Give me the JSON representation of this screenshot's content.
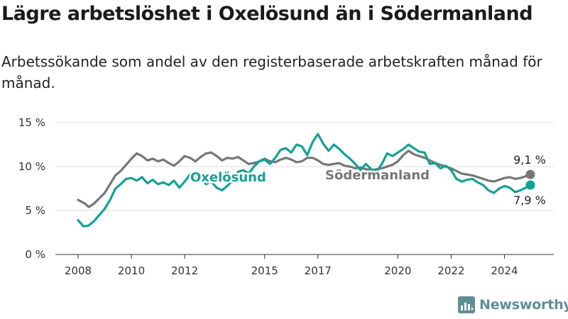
{
  "header": {
    "title": "Lägre arbetslöshet i Oxelösund än i Södermanland",
    "subtitle": "Arbetssökande som andel av den registerbaserade arbetskraften månad för månad."
  },
  "brand": {
    "name": "Newsworthy",
    "icon": "bar-chart-logo-icon",
    "color": "#5f8e94"
  },
  "chart_data": {
    "type": "line",
    "title": "Lägre arbetslöshet i Oxelösund än i Södermanland",
    "subtitle": "Arbetssökande som andel av den registerbaserade arbetskraften månad för månad.",
    "x_unit": "year",
    "xlim": [
      2008,
      2025.25
    ],
    "ylim": [
      0,
      15
    ],
    "y_ticks": [
      {
        "value": 0,
        "label": "0 %"
      },
      {
        "value": 5,
        "label": "5 %"
      },
      {
        "value": 10,
        "label": "10 %"
      },
      {
        "value": 15,
        "label": "15 %"
      }
    ],
    "x_ticks": [
      {
        "value": 2008,
        "label": "2008"
      },
      {
        "value": 2010,
        "label": "2010"
      },
      {
        "value": 2012,
        "label": "2012"
      },
      {
        "value": 2015,
        "label": "2015"
      },
      {
        "value": 2017,
        "label": "2017"
      },
      {
        "value": 2020,
        "label": "2020"
      },
      {
        "value": 2022,
        "label": "2022"
      },
      {
        "value": 2024,
        "label": "2024"
      }
    ],
    "grid": {
      "horizontal": true,
      "vertical": false
    },
    "legend": "inline labels",
    "series": [
      {
        "name": "Södermanland",
        "color": "#767676",
        "end_label": "9,1 %",
        "points": [
          [
            2008.0,
            6.2
          ],
          [
            2008.25,
            5.8
          ],
          [
            2008.4,
            5.4
          ],
          [
            2008.6,
            5.8
          ],
          [
            2008.8,
            6.4
          ],
          [
            2009.0,
            7.0
          ],
          [
            2009.2,
            8.0
          ],
          [
            2009.4,
            9.0
          ],
          [
            2009.6,
            9.5
          ],
          [
            2009.8,
            10.2
          ],
          [
            2010.0,
            10.9
          ],
          [
            2010.2,
            11.5
          ],
          [
            2010.4,
            11.2
          ],
          [
            2010.6,
            10.7
          ],
          [
            2010.8,
            10.9
          ],
          [
            2011.0,
            10.6
          ],
          [
            2011.2,
            10.8
          ],
          [
            2011.4,
            10.4
          ],
          [
            2011.6,
            10.1
          ],
          [
            2011.8,
            10.6
          ],
          [
            2012.0,
            11.2
          ],
          [
            2012.2,
            11.0
          ],
          [
            2012.4,
            10.6
          ],
          [
            2012.6,
            11.1
          ],
          [
            2012.8,
            11.5
          ],
          [
            2013.0,
            11.6
          ],
          [
            2013.2,
            11.2
          ],
          [
            2013.4,
            10.7
          ],
          [
            2013.6,
            11.0
          ],
          [
            2013.8,
            10.9
          ],
          [
            2014.0,
            11.1
          ],
          [
            2014.2,
            10.7
          ],
          [
            2014.4,
            10.3
          ],
          [
            2014.6,
            10.4
          ],
          [
            2014.8,
            10.6
          ],
          [
            2015.0,
            10.9
          ],
          [
            2015.2,
            10.6
          ],
          [
            2015.4,
            10.5
          ],
          [
            2015.6,
            10.8
          ],
          [
            2015.8,
            11.0
          ],
          [
            2016.0,
            10.8
          ],
          [
            2016.2,
            10.5
          ],
          [
            2016.4,
            10.6
          ],
          [
            2016.6,
            11.0
          ],
          [
            2016.8,
            11.0
          ],
          [
            2017.0,
            10.7
          ],
          [
            2017.2,
            10.3
          ],
          [
            2017.4,
            10.2
          ],
          [
            2017.6,
            10.3
          ],
          [
            2017.8,
            10.4
          ],
          [
            2018.0,
            10.1
          ],
          [
            2018.2,
            10.0
          ],
          [
            2018.4,
            9.8
          ],
          [
            2018.6,
            9.9
          ],
          [
            2018.8,
            9.7
          ],
          [
            2019.0,
            9.6
          ],
          [
            2019.2,
            9.7
          ],
          [
            2019.4,
            9.8
          ],
          [
            2019.6,
            10.0
          ],
          [
            2019.8,
            10.2
          ],
          [
            2020.0,
            10.6
          ],
          [
            2020.2,
            11.3
          ],
          [
            2020.4,
            11.8
          ],
          [
            2020.6,
            11.4
          ],
          [
            2020.8,
            11.2
          ],
          [
            2021.0,
            11.0
          ],
          [
            2021.2,
            10.7
          ],
          [
            2021.4,
            10.4
          ],
          [
            2021.6,
            10.2
          ],
          [
            2021.8,
            10.0
          ],
          [
            2022.0,
            9.8
          ],
          [
            2022.2,
            9.5
          ],
          [
            2022.4,
            9.2
          ],
          [
            2022.6,
            9.1
          ],
          [
            2022.8,
            9.0
          ],
          [
            2023.0,
            8.8
          ],
          [
            2023.2,
            8.6
          ],
          [
            2023.4,
            8.4
          ],
          [
            2023.6,
            8.3
          ],
          [
            2023.8,
            8.5
          ],
          [
            2024.0,
            8.7
          ],
          [
            2024.2,
            8.8
          ],
          [
            2024.4,
            8.6
          ],
          [
            2024.6,
            8.7
          ],
          [
            2024.8,
            8.9
          ],
          [
            2025.0,
            9.1
          ]
        ]
      },
      {
        "name": "Oxelösund",
        "color": "#14a196",
        "end_label": "7,9 %",
        "points": [
          [
            2008.0,
            3.9
          ],
          [
            2008.2,
            3.2
          ],
          [
            2008.4,
            3.3
          ],
          [
            2008.6,
            3.8
          ],
          [
            2008.8,
            4.5
          ],
          [
            2009.0,
            5.2
          ],
          [
            2009.2,
            6.2
          ],
          [
            2009.4,
            7.5
          ],
          [
            2009.6,
            8.0
          ],
          [
            2009.8,
            8.6
          ],
          [
            2010.0,
            8.7
          ],
          [
            2010.2,
            8.4
          ],
          [
            2010.4,
            8.8
          ],
          [
            2010.6,
            8.1
          ],
          [
            2010.8,
            8.5
          ],
          [
            2011.0,
            8.0
          ],
          [
            2011.2,
            8.2
          ],
          [
            2011.4,
            7.9
          ],
          [
            2011.6,
            8.4
          ],
          [
            2011.8,
            7.6
          ],
          [
            2012.0,
            8.3
          ],
          [
            2012.2,
            9.1
          ],
          [
            2012.4,
            8.6
          ],
          [
            2012.6,
            8.9
          ],
          [
            2012.8,
            8.0
          ],
          [
            2013.0,
            8.3
          ],
          [
            2013.2,
            7.6
          ],
          [
            2013.4,
            7.3
          ],
          [
            2013.6,
            7.8
          ],
          [
            2013.8,
            8.4
          ],
          [
            2014.0,
            9.4
          ],
          [
            2014.2,
            9.6
          ],
          [
            2014.4,
            9.2
          ],
          [
            2014.6,
            10.0
          ],
          [
            2014.8,
            10.6
          ],
          [
            2015.0,
            10.8
          ],
          [
            2015.2,
            10.3
          ],
          [
            2015.4,
            11.0
          ],
          [
            2015.6,
            11.9
          ],
          [
            2015.8,
            12.1
          ],
          [
            2016.0,
            11.6
          ],
          [
            2016.2,
            12.5
          ],
          [
            2016.4,
            12.3
          ],
          [
            2016.6,
            11.3
          ],
          [
            2016.8,
            12.8
          ],
          [
            2017.0,
            13.7
          ],
          [
            2017.2,
            12.6
          ],
          [
            2017.4,
            11.8
          ],
          [
            2017.6,
            12.5
          ],
          [
            2017.8,
            12.0
          ],
          [
            2018.0,
            11.4
          ],
          [
            2018.2,
            10.9
          ],
          [
            2018.4,
            10.3
          ],
          [
            2018.6,
            9.6
          ],
          [
            2018.8,
            10.3
          ],
          [
            2019.0,
            9.7
          ],
          [
            2019.2,
            9.4
          ],
          [
            2019.4,
            10.3
          ],
          [
            2019.6,
            11.5
          ],
          [
            2019.8,
            11.2
          ],
          [
            2020.0,
            11.6
          ],
          [
            2020.2,
            12.0
          ],
          [
            2020.4,
            12.5
          ],
          [
            2020.6,
            12.1
          ],
          [
            2020.8,
            11.7
          ],
          [
            2021.0,
            11.6
          ],
          [
            2021.2,
            10.3
          ],
          [
            2021.4,
            10.4
          ],
          [
            2021.6,
            9.8
          ],
          [
            2021.8,
            10.1
          ],
          [
            2022.0,
            9.6
          ],
          [
            2022.2,
            8.6
          ],
          [
            2022.4,
            8.3
          ],
          [
            2022.6,
            8.5
          ],
          [
            2022.8,
            8.6
          ],
          [
            2023.0,
            8.2
          ],
          [
            2023.2,
            7.9
          ],
          [
            2023.4,
            7.3
          ],
          [
            2023.6,
            7.0
          ],
          [
            2023.8,
            7.5
          ],
          [
            2024.0,
            7.8
          ],
          [
            2024.2,
            7.6
          ],
          [
            2024.4,
            7.1
          ],
          [
            2024.6,
            7.3
          ],
          [
            2024.8,
            7.6
          ],
          [
            2025.0,
            7.9
          ]
        ]
      }
    ]
  }
}
